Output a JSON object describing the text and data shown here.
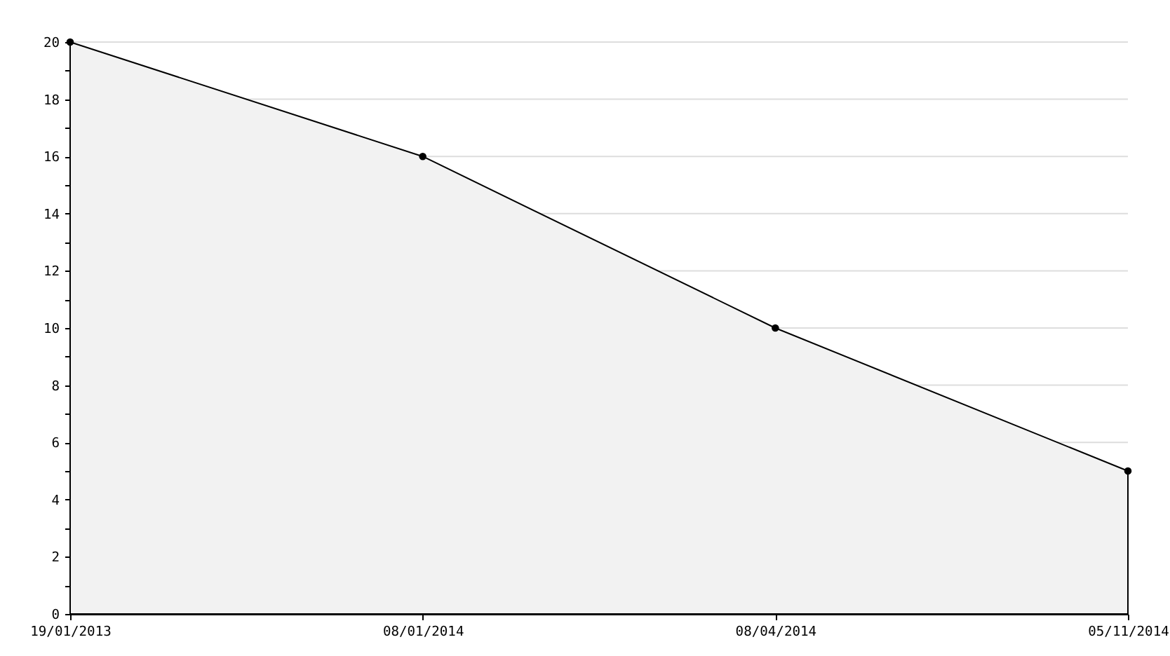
{
  "chart_data": {
    "type": "area",
    "categories": [
      "19/01/2013",
      "08/01/2014",
      "08/04/2014",
      "05/11/2014"
    ],
    "series": [
      {
        "color": "#f2f2f2",
        "values": [
          20,
          16,
          10,
          5
        ]
      }
    ],
    "ylim": [
      0,
      20
    ],
    "yticks": [
      0,
      {
        "value": 1,
        "label": null
      },
      2,
      {
        "value": 3,
        "label": null
      },
      4,
      {
        "value": 5,
        "label": null
      },
      6,
      {
        "value": 7,
        "label": null
      },
      8,
      {
        "value": 9,
        "label": null
      },
      10,
      {
        "value": 11,
        "label": null
      },
      12,
      {
        "value": 13,
        "label": null
      },
      14,
      {
        "value": 15,
        "label": null
      },
      16,
      {
        "value": 17,
        "label": null
      },
      18,
      {
        "value": 19,
        "label": null
      },
      20
    ],
    "grid": "y",
    "marker": "circle"
  }
}
